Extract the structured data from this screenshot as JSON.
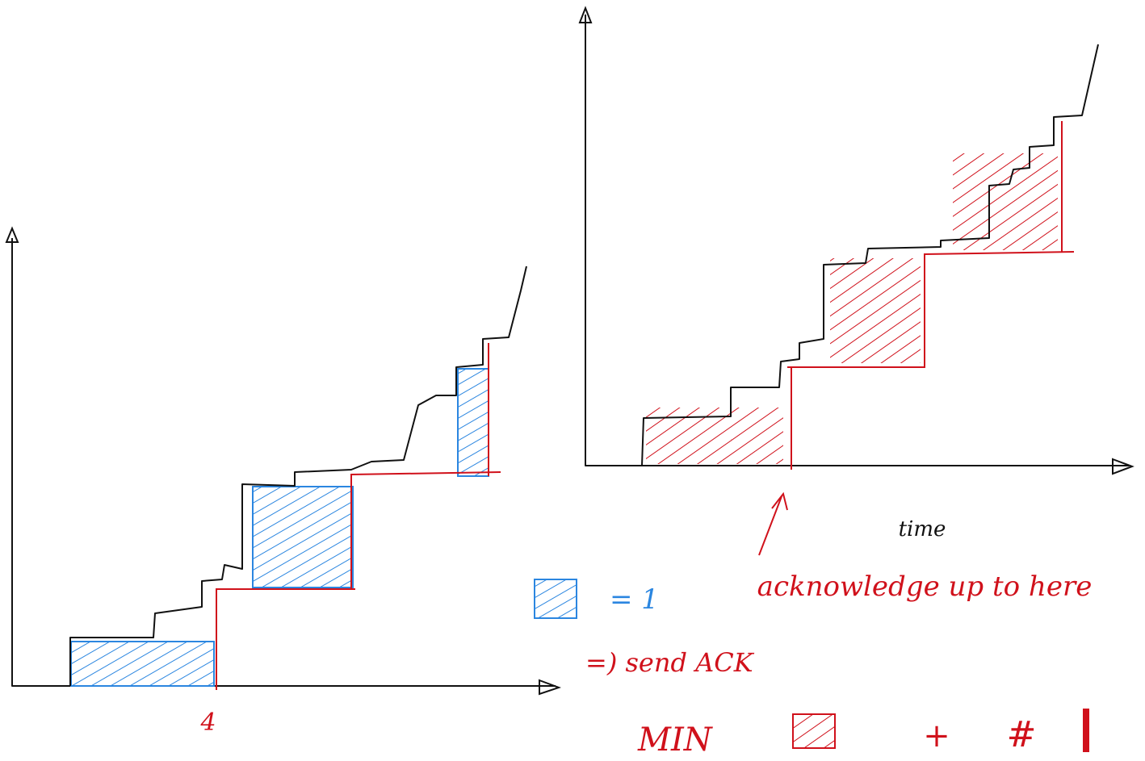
{
  "labels": {
    "left_tick": "4",
    "time": "time",
    "ack": "acknowledge up to here",
    "legend": "= 1",
    "send": "=) send ACK",
    "min": "MIN",
    "plus": "+",
    "hash": "#"
  }
}
